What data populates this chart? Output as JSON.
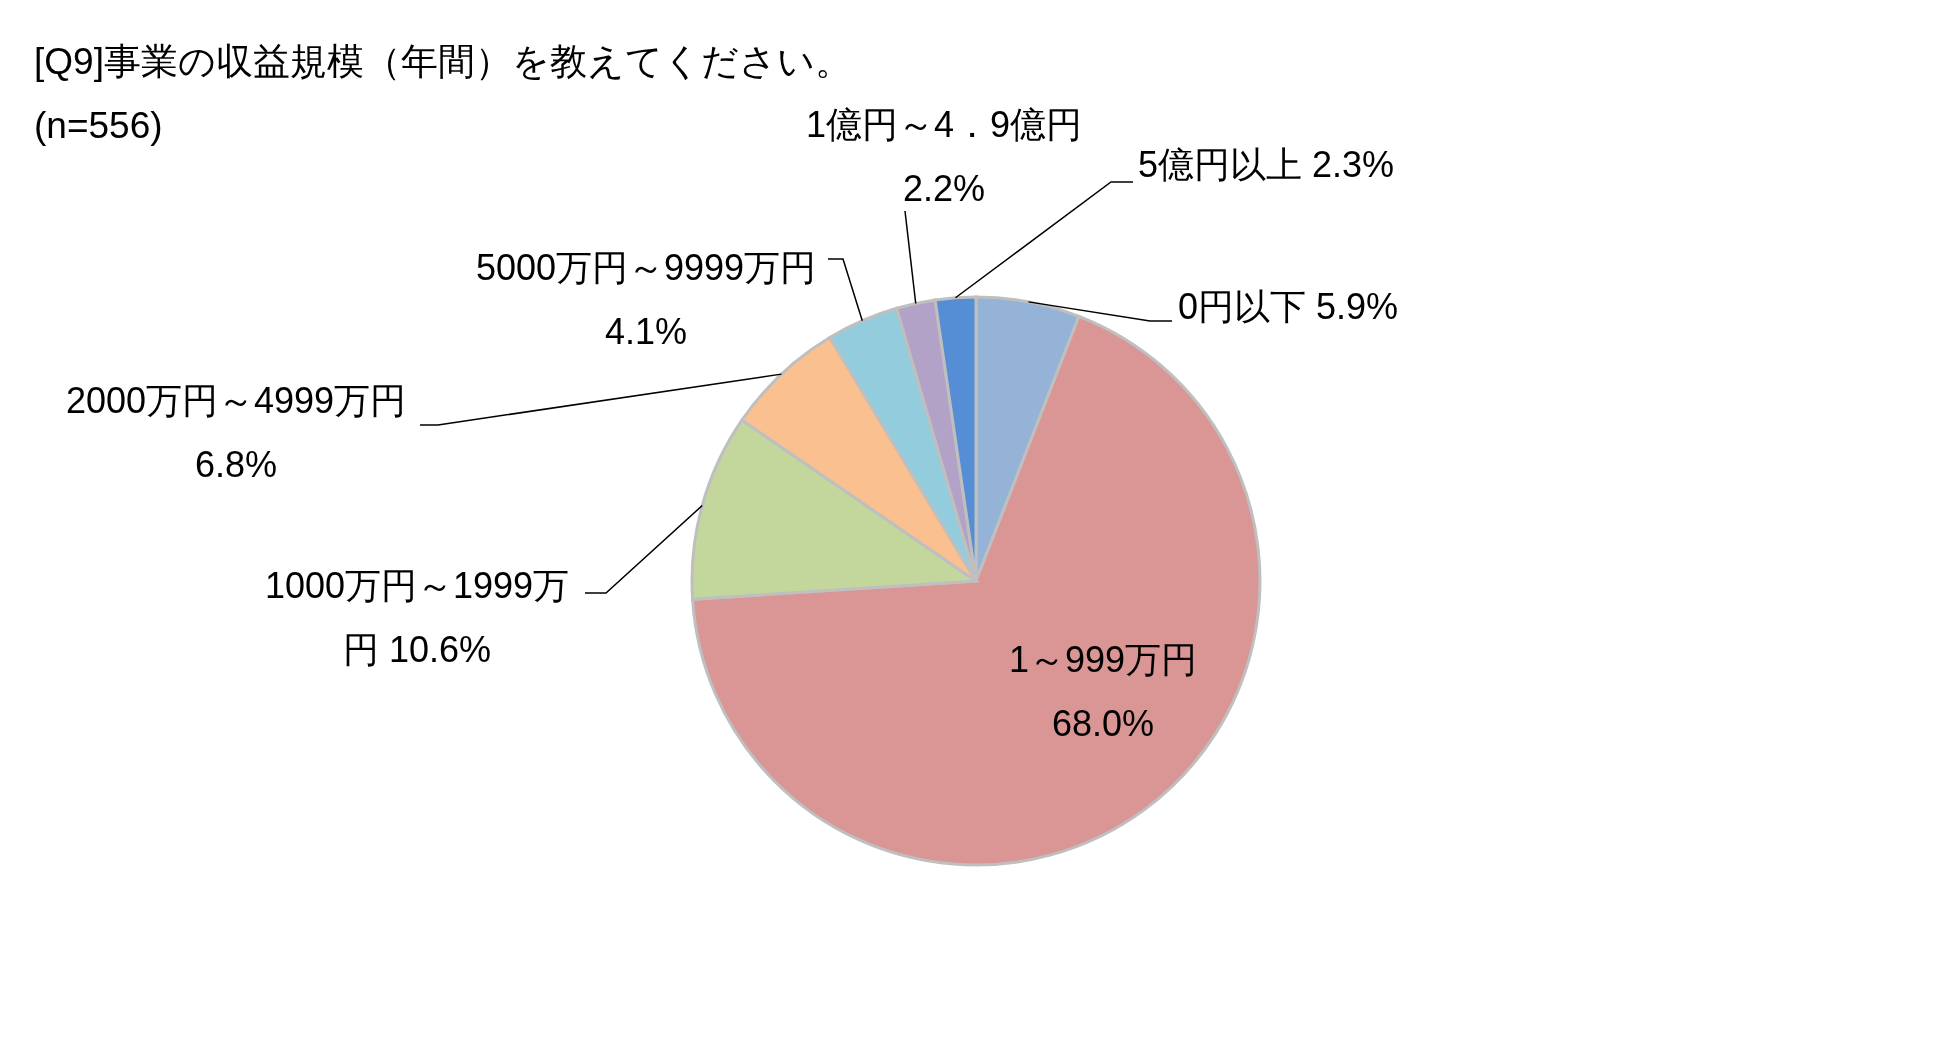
{
  "chart_data": {
    "type": "pie",
    "title": "[Q9]事業の収益規模（年間）を教えてください。",
    "subtitle": "(n=556)",
    "categories": [
      "0円以下",
      "1～999万円",
      "1000万円～1999万円",
      "2000万円～4999万円",
      "5000万円～9999万円",
      "1億円～4．9億円",
      "5億円以上"
    ],
    "values": [
      5.9,
      68.0,
      10.6,
      6.8,
      4.1,
      2.2,
      2.3
    ],
    "colors": [
      "#95b3d7",
      "#d99694",
      "#c3d69b",
      "#fac090",
      "#93cddd",
      "#b3a2c7",
      "#558ed5"
    ],
    "value_labels": [
      "5.9%",
      "68.0%",
      "10.6%",
      "6.8%",
      "4.1%",
      "2.2%",
      "2.3%"
    ]
  }
}
